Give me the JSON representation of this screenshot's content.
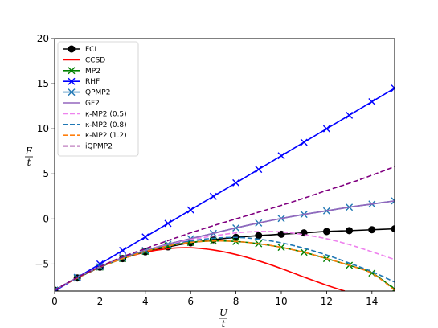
{
  "chart_data": {
    "type": "line",
    "xlabel": {
      "num": "U",
      "den": "t"
    },
    "ylabel": {
      "num": "E",
      "den": "t"
    },
    "xlim": [
      0,
      15
    ],
    "ylim": [
      -8,
      20
    ],
    "xticks": [
      0,
      2,
      4,
      6,
      8,
      10,
      12,
      14
    ],
    "yticks": [
      -5,
      0,
      5,
      10,
      15,
      20
    ],
    "grid": false,
    "legend_position": "top-left",
    "series": [
      {
        "name": "FCI",
        "color": "#000000",
        "style": "solid",
        "marker": "circle",
        "marker_x": [
          0,
          1,
          2,
          3,
          4,
          5,
          6,
          7,
          8,
          9,
          10,
          11,
          12,
          13,
          14,
          15
        ],
        "points": [
          [
            0,
            -7.9
          ],
          [
            0.5,
            -7.2
          ],
          [
            1,
            -6.55
          ],
          [
            1.5,
            -5.95
          ],
          [
            2,
            -5.35
          ],
          [
            2.5,
            -4.85
          ],
          [
            3,
            -4.4
          ],
          [
            3.5,
            -4.0
          ],
          [
            4,
            -3.65
          ],
          [
            5,
            -3.1
          ],
          [
            6,
            -2.65
          ],
          [
            7,
            -2.3
          ],
          [
            8,
            -2.05
          ],
          [
            9,
            -1.85
          ],
          [
            10,
            -1.7
          ],
          [
            11,
            -1.55
          ],
          [
            12,
            -1.4
          ],
          [
            13,
            -1.3
          ],
          [
            14,
            -1.2
          ],
          [
            15,
            -1.1
          ]
        ]
      },
      {
        "name": "CCSD",
        "color": "#ff0000",
        "style": "solid",
        "marker": "none",
        "points": [
          [
            0,
            -7.9
          ],
          [
            1,
            -6.55
          ],
          [
            2,
            -5.35
          ],
          [
            3,
            -4.4
          ],
          [
            4,
            -3.7
          ],
          [
            5,
            -3.3
          ],
          [
            6,
            -3.2
          ],
          [
            7,
            -3.45
          ],
          [
            8,
            -3.95
          ],
          [
            9,
            -4.65
          ],
          [
            10,
            -5.5
          ],
          [
            11,
            -6.45
          ],
          [
            12,
            -7.35
          ],
          [
            12.8,
            -8.0
          ]
        ]
      },
      {
        "name": "MP2",
        "color": "#008000",
        "style": "solid",
        "marker": "x",
        "marker_x": [
          0,
          1,
          2,
          3,
          4,
          5,
          6,
          7,
          8,
          9,
          10,
          11,
          12,
          13,
          14,
          15
        ],
        "points": [
          [
            0,
            -7.9
          ],
          [
            1,
            -6.55
          ],
          [
            2,
            -5.35
          ],
          [
            3,
            -4.4
          ],
          [
            4,
            -3.6
          ],
          [
            5,
            -3.0
          ],
          [
            6,
            -2.6
          ],
          [
            7,
            -2.45
          ],
          [
            8,
            -2.5
          ],
          [
            9,
            -2.75
          ],
          [
            10,
            -3.15
          ],
          [
            11,
            -3.7
          ],
          [
            12,
            -4.4
          ],
          [
            13,
            -5.15
          ],
          [
            14,
            -6.0
          ],
          [
            15,
            -7.8
          ]
        ]
      },
      {
        "name": "RHF",
        "color": "#0000ff",
        "style": "solid",
        "marker": "x",
        "marker_x": [
          0,
          1,
          2,
          3,
          4,
          5,
          6,
          7,
          8,
          9,
          10,
          11,
          12,
          13,
          14,
          15
        ],
        "points": [
          [
            0,
            -8.0
          ],
          [
            15,
            14.5
          ]
        ]
      },
      {
        "name": "QPMP2",
        "color": "#1f77b4",
        "style": "solid",
        "marker": "x",
        "marker_x": [
          0,
          1,
          2,
          3,
          4,
          5,
          6,
          7,
          8,
          9,
          10,
          11,
          12,
          13,
          14,
          15
        ],
        "points": [
          [
            0,
            -7.9
          ],
          [
            1,
            -6.5
          ],
          [
            2,
            -5.3
          ],
          [
            3,
            -4.3
          ],
          [
            4,
            -3.5
          ],
          [
            5,
            -2.8
          ],
          [
            6,
            -2.2
          ],
          [
            7,
            -1.6
          ],
          [
            8,
            -1.0
          ],
          [
            9,
            -0.45
          ],
          [
            10,
            0.05
          ],
          [
            11,
            0.5
          ],
          [
            12,
            0.9
          ],
          [
            13,
            1.3
          ],
          [
            14,
            1.65
          ],
          [
            15,
            2.0
          ]
        ]
      },
      {
        "name": "GF2",
        "color": "#9467bd",
        "style": "solid",
        "marker": "none",
        "points": [
          [
            0,
            -7.9
          ],
          [
            1,
            -6.5
          ],
          [
            2,
            -5.3
          ],
          [
            3,
            -4.3
          ],
          [
            4,
            -3.5
          ],
          [
            5,
            -2.8
          ],
          [
            6,
            -2.2
          ],
          [
            7,
            -1.6
          ],
          [
            8,
            -1.0
          ],
          [
            9,
            -0.45
          ],
          [
            10,
            0.05
          ],
          [
            11,
            0.5
          ],
          [
            12,
            0.9
          ],
          [
            13,
            1.3
          ],
          [
            14,
            1.65
          ],
          [
            15,
            2.0
          ]
        ]
      },
      {
        "name": "κ-MP2 (0.5)",
        "color": "#ee82ee",
        "style": "dashed",
        "marker": "none",
        "points": [
          [
            0,
            -7.9
          ],
          [
            1,
            -6.5
          ],
          [
            2,
            -5.3
          ],
          [
            3,
            -4.3
          ],
          [
            4,
            -3.5
          ],
          [
            5,
            -2.9
          ],
          [
            6,
            -2.3
          ],
          [
            7,
            -1.9
          ],
          [
            8,
            -1.55
          ],
          [
            9,
            -1.4
          ],
          [
            10,
            -1.45
          ],
          [
            11,
            -1.75
          ],
          [
            12,
            -2.2
          ],
          [
            13,
            -2.85
          ],
          [
            14,
            -3.65
          ],
          [
            15,
            -4.5
          ]
        ]
      },
      {
        "name": "κ-MP2 (0.8)",
        "color": "#1f77b4",
        "style": "dashed",
        "marker": "none",
        "points": [
          [
            0,
            -7.9
          ],
          [
            1,
            -6.5
          ],
          [
            2,
            -5.3
          ],
          [
            3,
            -4.3
          ],
          [
            4,
            -3.55
          ],
          [
            5,
            -2.95
          ],
          [
            6,
            -2.45
          ],
          [
            7,
            -2.15
          ],
          [
            8,
            -2.05
          ],
          [
            9,
            -2.25
          ],
          [
            10,
            -2.65
          ],
          [
            11,
            -3.25
          ],
          [
            12,
            -4.0
          ],
          [
            13,
            -4.9
          ],
          [
            14,
            -5.85
          ],
          [
            15,
            -7.0
          ]
        ]
      },
      {
        "name": "κ-MP2 (1.2)",
        "color": "#ff7f0e",
        "style": "dashed",
        "marker": "none",
        "points": [
          [
            0,
            -7.9
          ],
          [
            1,
            -6.55
          ],
          [
            2,
            -5.35
          ],
          [
            3,
            -4.4
          ],
          [
            4,
            -3.6
          ],
          [
            5,
            -3.0
          ],
          [
            6,
            -2.6
          ],
          [
            7,
            -2.45
          ],
          [
            8,
            -2.5
          ],
          [
            9,
            -2.75
          ],
          [
            10,
            -3.15
          ],
          [
            11,
            -3.7
          ],
          [
            12,
            -4.4
          ],
          [
            13,
            -5.15
          ],
          [
            14,
            -6.05
          ],
          [
            15,
            -7.9
          ]
        ]
      },
      {
        "name": "iQPMP2",
        "color": "#800080",
        "style": "dashed",
        "marker": "none",
        "points": [
          [
            0,
            -7.9
          ],
          [
            1,
            -6.5
          ],
          [
            2,
            -5.3
          ],
          [
            3,
            -4.2
          ],
          [
            4,
            -3.3
          ],
          [
            5,
            -2.4
          ],
          [
            6,
            -1.55
          ],
          [
            7,
            -0.75
          ],
          [
            8,
            0.0
          ],
          [
            9,
            0.75
          ],
          [
            10,
            1.5
          ],
          [
            11,
            2.3
          ],
          [
            12,
            3.15
          ],
          [
            13,
            3.95
          ],
          [
            14,
            4.85
          ],
          [
            15,
            5.8
          ]
        ]
      }
    ]
  }
}
